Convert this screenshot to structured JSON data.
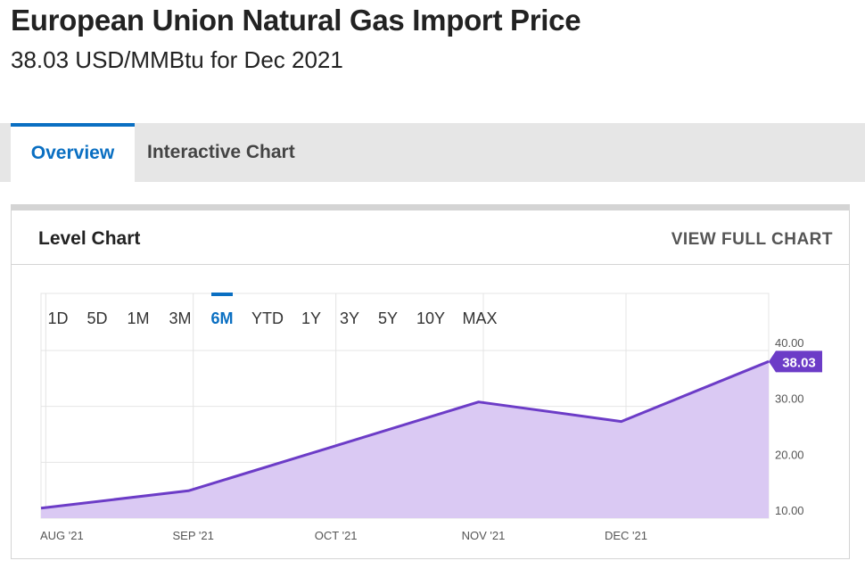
{
  "page": {
    "title": "European Union Natural Gas Import Price",
    "subtitle": "38.03 USD/MMBtu for Dec 2021"
  },
  "tabs": [
    {
      "label": "Overview",
      "active": true
    },
    {
      "label": "Interactive Chart",
      "active": false
    }
  ],
  "card": {
    "title": "Level Chart",
    "link_label": "VIEW FULL CHART"
  },
  "range_buttons": [
    {
      "label": "1D",
      "active": false
    },
    {
      "label": "5D",
      "active": false
    },
    {
      "label": "1M",
      "active": false
    },
    {
      "label": "3M",
      "active": false
    },
    {
      "label": "6M",
      "active": true
    },
    {
      "label": "YTD",
      "active": false
    },
    {
      "label": "1Y",
      "active": false
    },
    {
      "label": "3Y",
      "active": false
    },
    {
      "label": "5Y",
      "active": false
    },
    {
      "label": "10Y",
      "active": false
    },
    {
      "label": "MAX",
      "active": false
    }
  ],
  "colors": {
    "accent": "#0a6fc2",
    "series_line": "#6c3cc7",
    "series_fill": "#dac9f3",
    "last_value_badge": "#6c3cc7",
    "grid": "#e4e4e4"
  },
  "chart_data": {
    "type": "area",
    "x": [
      "2021-07-31",
      "2021-08-31",
      "2021-09-30",
      "2021-10-31",
      "2021-11-30",
      "2021-12-31"
    ],
    "series": [
      {
        "values": [
          11.8,
          14.9,
          22.7,
          30.8,
          27.3,
          38.03
        ]
      }
    ],
    "x_tick_labels": [
      "AUG '21",
      "SEP '21",
      "OCT '21",
      "NOV '21",
      "DEC '21"
    ],
    "x_tick_dates": [
      "2021-08-01",
      "2021-09-01",
      "2021-10-01",
      "2021-11-01",
      "2021-12-01"
    ],
    "y_tick_labels": [
      "10.00",
      "20.00",
      "30.00",
      "40.00"
    ],
    "y_tick_values": [
      10,
      20,
      30,
      40
    ],
    "ylim": [
      10,
      40
    ],
    "last_value_label": "38.03",
    "grid": true,
    "legend": "none"
  }
}
